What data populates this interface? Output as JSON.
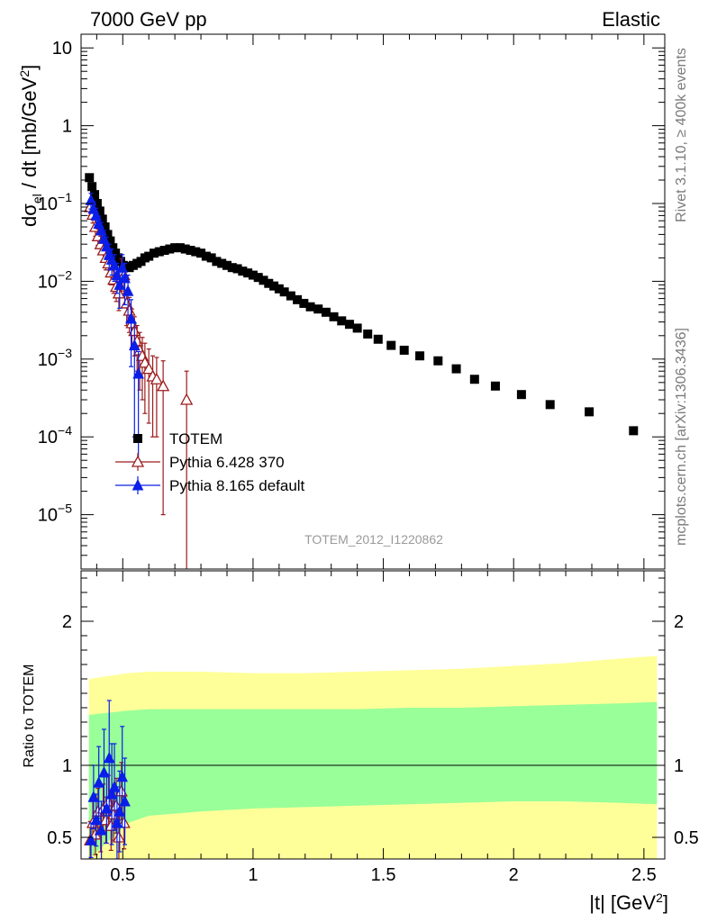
{
  "header": {
    "left": "7000 GeV pp",
    "right": "Elastic"
  },
  "side_labels": {
    "rivet": "Rivet 3.1.10, ≥ 400k events",
    "mcplots": "mcplots.cern.ch [arXiv:1306.3436]"
  },
  "analysis_tag": "TOTEM_2012_I1220862",
  "axes": {
    "ylabel_main": "dσ_el / dt [mb/GeV²]",
    "ylabel_ratio": "Ratio to TOTEM",
    "xlabel": "|t| [GeV²]"
  },
  "chart_data": [
    {
      "type": "scatter",
      "panel": "main",
      "log_y": true,
      "xlim": [
        0.34,
        2.58
      ],
      "ylim": [
        2e-06,
        15
      ],
      "x_ticks": [
        0.5,
        1,
        1.5,
        2,
        2.5
      ],
      "y_ticks": [
        {
          "value": 1e-05,
          "base": "10",
          "exp": "−5"
        },
        {
          "value": 0.0001,
          "base": "10",
          "exp": "−4"
        },
        {
          "value": 0.001,
          "base": "10",
          "exp": "−3"
        },
        {
          "value": 0.01,
          "base": "10",
          "exp": "−2"
        },
        {
          "value": 0.1,
          "base": "10",
          "exp": "−1"
        },
        {
          "value": 1,
          "base": "1",
          "exp": ""
        },
        {
          "value": 10,
          "base": "10",
          "exp": ""
        }
      ],
      "series": [
        {
          "name": "TOTEM",
          "color": "#000000",
          "marker": "square",
          "x": [
            0.372,
            0.382,
            0.392,
            0.402,
            0.412,
            0.422,
            0.432,
            0.442,
            0.452,
            0.462,
            0.472,
            0.482,
            0.492,
            0.502,
            0.512,
            0.525,
            0.54,
            0.555,
            0.57,
            0.585,
            0.6,
            0.62,
            0.64,
            0.66,
            0.68,
            0.7,
            0.72,
            0.74,
            0.76,
            0.78,
            0.8,
            0.82,
            0.84,
            0.86,
            0.88,
            0.9,
            0.92,
            0.94,
            0.96,
            0.98,
            1.0,
            1.02,
            1.04,
            1.06,
            1.08,
            1.1,
            1.12,
            1.145,
            1.17,
            1.195,
            1.22,
            1.25,
            1.28,
            1.31,
            1.34,
            1.37,
            1.4,
            1.44,
            1.48,
            1.53,
            1.58,
            1.64,
            1.71,
            1.78,
            1.85,
            1.93,
            2.03,
            2.14,
            2.29,
            2.46
          ],
          "y": [
            0.215,
            0.165,
            0.13,
            0.1,
            0.08,
            0.063,
            0.05,
            0.04,
            0.033,
            0.027,
            0.023,
            0.02,
            0.018,
            0.016,
            0.0155,
            0.015,
            0.016,
            0.017,
            0.018,
            0.02,
            0.021,
            0.023,
            0.024,
            0.025,
            0.026,
            0.027,
            0.027,
            0.026,
            0.025,
            0.024,
            0.023,
            0.021,
            0.02,
            0.018,
            0.017,
            0.016,
            0.015,
            0.0145,
            0.0135,
            0.0128,
            0.012,
            0.0112,
            0.0103,
            0.0094,
            0.0087,
            0.008,
            0.0073,
            0.0065,
            0.0058,
            0.0052,
            0.0047,
            0.0044,
            0.004,
            0.0035,
            0.0031,
            0.0028,
            0.0025,
            0.0021,
            0.0018,
            0.0015,
            0.0013,
            0.0011,
            0.00095,
            0.00075,
            0.00055,
            0.00045,
            0.00035,
            0.00026,
            0.00021,
            0.00012
          ],
          "yerr_low": [],
          "yerr_high": []
        },
        {
          "name": "Pythia 6.428 370",
          "color": "#9b1c1c",
          "marker": "open-triangle",
          "x": [
            0.375,
            0.385,
            0.395,
            0.405,
            0.415,
            0.425,
            0.435,
            0.445,
            0.455,
            0.465,
            0.475,
            0.485,
            0.495,
            0.505,
            0.515,
            0.525,
            0.535,
            0.545,
            0.555,
            0.565,
            0.575,
            0.585,
            0.6,
            0.615,
            0.63,
            0.655,
            0.745
          ],
          "y": [
            0.09,
            0.072,
            0.05,
            0.038,
            0.03,
            0.025,
            0.02,
            0.017,
            0.013,
            0.0105,
            0.0085,
            0.007,
            0.0135,
            0.012,
            0.0052,
            0.0042,
            0.0029,
            0.0023,
            0.0017,
            0.0013,
            0.0011,
            0.0009,
            0.00075,
            0.0006,
            0.00055,
            0.00045,
            0.0003
          ],
          "yerr_low": [
            0.02,
            0.016,
            0.012,
            0.009,
            0.008,
            0.007,
            0.006,
            0.005,
            0.004,
            0.0035,
            0.003,
            0.0028,
            0.006,
            0.005,
            0.0025,
            0.002,
            0.0015,
            0.0012,
            0.001,
            0.0009,
            0.0008,
            0.0007,
            0.0006,
            0.0005,
            0.00045,
            0.00044,
            0.000299
          ],
          "yerr_high": [
            0.02,
            0.016,
            0.012,
            0.009,
            0.008,
            0.007,
            0.006,
            0.005,
            0.004,
            0.0035,
            0.003,
            0.0028,
            0.006,
            0.005,
            0.0025,
            0.002,
            0.0015,
            0.0012,
            0.001,
            0.0009,
            0.0008,
            0.0007,
            0.0006,
            0.0005,
            0.0005,
            0.0005,
            0.0004
          ]
        },
        {
          "name": "Pythia 8.165 default",
          "color": "#0a1ee8",
          "marker": "filled-triangle",
          "x": [
            0.378,
            0.388,
            0.398,
            0.408,
            0.418,
            0.428,
            0.438,
            0.448,
            0.458,
            0.468,
            0.478,
            0.488,
            0.498,
            0.508,
            0.52,
            0.532,
            0.545,
            0.56
          ],
          "y": [
            0.11,
            0.085,
            0.07,
            0.055,
            0.045,
            0.035,
            0.028,
            0.022,
            0.019,
            0.016,
            0.012,
            0.009,
            0.015,
            0.011,
            0.0075,
            0.0033,
            0.0015,
            0.00065
          ],
          "yerr_low": [
            0.025,
            0.02,
            0.017,
            0.014,
            0.012,
            0.01,
            0.009,
            0.008,
            0.007,
            0.006,
            0.005,
            0.0045,
            0.007,
            0.006,
            0.0045,
            0.0025,
            0.0014,
            0.0006
          ],
          "yerr_high": [
            0.025,
            0.02,
            0.017,
            0.014,
            0.012,
            0.01,
            0.009,
            0.008,
            0.007,
            0.006,
            0.005,
            0.0045,
            0.007,
            0.006,
            0.0045,
            0.0025,
            0.0014,
            0.0006
          ]
        }
      ],
      "legend": [
        {
          "label": "TOTEM",
          "series": 0
        },
        {
          "label": "Pythia 6.428 370",
          "series": 1
        },
        {
          "label": "Pythia 8.165 default",
          "series": 2
        }
      ]
    },
    {
      "type": "scatter",
      "panel": "ratio",
      "xlim": [
        0.34,
        2.58
      ],
      "ylim": [
        0.35,
        2.35
      ],
      "y_ticks": [
        0.5,
        1,
        2
      ],
      "y_minor_ticks": [
        0.6,
        0.7,
        0.8,
        0.9,
        1.1,
        1.2,
        1.3,
        1.4,
        1.5,
        1.6,
        1.7,
        1.8,
        1.9,
        2.1,
        2.2,
        2.3
      ],
      "reference_line": 1,
      "bands": {
        "x": [
          0.37,
          0.52,
          0.6,
          0.8,
          1.0,
          1.2,
          1.4,
          1.6,
          1.8,
          2.0,
          2.2,
          2.4,
          2.55
        ],
        "outer_low": [
          0.35,
          0.35,
          0.35,
          0.35,
          0.35,
          0.35,
          0.35,
          0.35,
          0.35,
          0.35,
          0.35,
          0.35,
          0.35
        ],
        "outer_high": [
          1.6,
          1.64,
          1.65,
          1.65,
          1.64,
          1.64,
          1.65,
          1.66,
          1.67,
          1.69,
          1.71,
          1.74,
          1.76
        ],
        "inner_low": [
          0.35,
          0.6,
          0.65,
          0.68,
          0.7,
          0.71,
          0.72,
          0.73,
          0.74,
          0.75,
          0.75,
          0.74,
          0.73
        ],
        "inner_high": [
          1.35,
          1.38,
          1.39,
          1.39,
          1.39,
          1.39,
          1.39,
          1.4,
          1.4,
          1.41,
          1.42,
          1.43,
          1.44
        ],
        "outer_color": "#ffff99",
        "inner_color": "#99ff99"
      },
      "series": [
        {
          "name": "Pythia 6.428 370",
          "color": "#9b1c1c",
          "marker": "open-triangle",
          "x": [
            0.375,
            0.385,
            0.395,
            0.405,
            0.415,
            0.425,
            0.435,
            0.445,
            0.455,
            0.465,
            0.475,
            0.485,
            0.495,
            0.505
          ],
          "y": [
            0.48,
            0.6,
            0.52,
            0.68,
            0.55,
            0.7,
            0.62,
            0.75,
            0.58,
            0.66,
            0.72,
            0.5,
            0.82,
            0.6
          ],
          "yerr": [
            0.13,
            0.15,
            0.14,
            0.16,
            0.15,
            0.17,
            0.16,
            0.18,
            0.17,
            0.18,
            0.19,
            0.17,
            0.2,
            0.18
          ]
        },
        {
          "name": "Pythia 8.165 default",
          "color": "#0a1ee8",
          "marker": "filled-triangle",
          "x": [
            0.378,
            0.388,
            0.398,
            0.408,
            0.418,
            0.428,
            0.438,
            0.448,
            0.458,
            0.468,
            0.478,
            0.488,
            0.498,
            0.508
          ],
          "y": [
            0.48,
            0.78,
            0.62,
            0.88,
            0.55,
            0.95,
            0.7,
            1.05,
            0.8,
            0.85,
            0.6,
            0.68,
            0.92,
            0.75
          ],
          "yerr": [
            0.12,
            0.22,
            0.18,
            0.25,
            0.2,
            0.3,
            0.24,
            0.4,
            0.35,
            0.3,
            0.25,
            0.28,
            0.35,
            0.3
          ]
        }
      ]
    }
  ]
}
